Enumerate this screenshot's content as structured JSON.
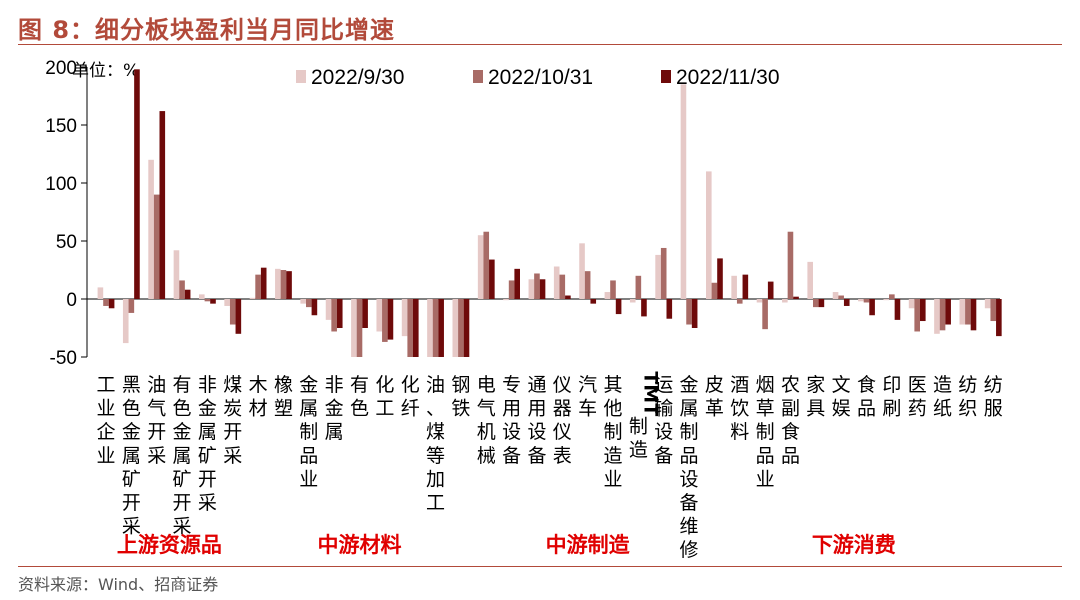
{
  "header": {
    "title": "图 8：细分板块盈利当月同比增速"
  },
  "footer": {
    "source": "资料来源：Wind、招商证券"
  },
  "chart_data": {
    "type": "bar",
    "unit_label": "单位：%",
    "ylim": [
      -50,
      200
    ],
    "yticks": [
      -50,
      0,
      50,
      100,
      150,
      200
    ],
    "grid": false,
    "legend_position": "top",
    "colors": [
      "#e6c9c7",
      "#a86b66",
      "#6e0a0a"
    ],
    "categories": [
      "工业企业",
      "黑色金属矿开采",
      "油气开采",
      "有色金属矿开采",
      "非金属矿开采",
      "煤炭开采",
      "木材",
      "橡塑",
      "金属制品业",
      "非金属",
      "有色",
      "化工",
      "化纤",
      "油、煤等加工",
      "钢铁",
      "电气机械",
      "专用设备",
      "通用设备",
      "仪器仪表",
      "汽车",
      "其他制造业",
      "TMT制造",
      "运输设备",
      "金属制品设备维修",
      "皮革",
      "酒饮料",
      "烟草制品业",
      "农副食品",
      "家具",
      "文娱",
      "食品",
      "印刷",
      "医药",
      "造纸",
      "纺织",
      "纺服"
    ],
    "series": [
      {
        "name": "2022/9/30",
        "values": [
          10,
          -38,
          120,
          42,
          4,
          -6,
          1,
          26,
          -4,
          -18,
          -50,
          -28,
          -32,
          -50,
          -50,
          55,
          -1,
          17,
          28,
          48,
          6,
          -3,
          38,
          185,
          110,
          20,
          -3,
          -3,
          32,
          6,
          -2,
          -1,
          -8,
          -30,
          -22,
          -8
        ]
      },
      {
        "name": "2022/10/31",
        "values": [
          -6,
          -12,
          90,
          16,
          -2,
          -22,
          21,
          25,
          -7,
          -28,
          -50,
          -37,
          -50,
          -50,
          -50,
          58,
          16,
          22,
          21,
          24,
          16,
          20,
          44,
          -22,
          14,
          -4,
          -26,
          58,
          -7,
          3,
          -3,
          4,
          -28,
          -27,
          -22,
          -19
        ]
      },
      {
        "name": "2022/11/30",
        "values": [
          -8,
          198,
          162,
          8,
          -4,
          -30,
          27,
          24,
          -14,
          -25,
          -25,
          -35,
          -50,
          -50,
          -50,
          34,
          26,
          17,
          3,
          -4,
          -13,
          -15,
          -17,
          -25,
          35,
          21,
          15,
          2,
          -7,
          -6,
          -14,
          -18,
          -19,
          -22,
          -27,
          -32
        ]
      }
    ],
    "groups": [
      {
        "label": "上游资源品",
        "from": 0,
        "to": 5
      },
      {
        "label": "中游材料",
        "from": 6,
        "to": 14
      },
      {
        "label": "中游制造",
        "from": 15,
        "to": 23
      },
      {
        "label": "下游消费",
        "from": 24,
        "to": 35
      }
    ]
  }
}
